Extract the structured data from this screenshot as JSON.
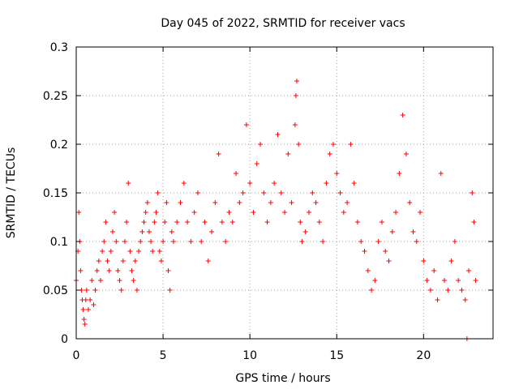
{
  "chart_data": {
    "type": "scatter",
    "title": "Day 045 of 2022, SRMTID for receiver vacs",
    "xlabel": "GPS time / hours",
    "ylabel": "SRMTID / TECUs",
    "xlim": [
      0,
      24
    ],
    "ylim": [
      0,
      0.3
    ],
    "x_ticks": [
      0,
      5,
      10,
      15,
      20
    ],
    "y_ticks": [
      0,
      0.05,
      0.1,
      0.15,
      0.2,
      0.25,
      0.3
    ],
    "x_tick_labels": [
      "0",
      "5",
      "10",
      "15",
      "20"
    ],
    "y_tick_labels": [
      "0",
      "0.05",
      "0.1",
      "0.15",
      "0.2",
      "0.25",
      "0.3"
    ],
    "grid": true,
    "marker": "plus",
    "color": "#ff0000",
    "series": [
      {
        "name": "SRMTID",
        "points": [
          [
            0.0,
            0.06
          ],
          [
            0.1,
            0.09
          ],
          [
            0.15,
            0.13
          ],
          [
            0.2,
            0.1
          ],
          [
            0.25,
            0.07
          ],
          [
            0.3,
            0.05
          ],
          [
            0.35,
            0.04
          ],
          [
            0.4,
            0.03
          ],
          [
            0.45,
            0.02
          ],
          [
            0.5,
            0.015
          ],
          [
            0.55,
            0.04
          ],
          [
            0.6,
            0.05
          ],
          [
            0.7,
            0.03
          ],
          [
            0.8,
            0.04
          ],
          [
            0.9,
            0.06
          ],
          [
            1.0,
            0.035
          ],
          [
            1.1,
            0.05
          ],
          [
            1.2,
            0.07
          ],
          [
            1.3,
            0.08
          ],
          [
            1.4,
            0.06
          ],
          [
            1.5,
            0.09
          ],
          [
            1.6,
            0.1
          ],
          [
            1.7,
            0.12
          ],
          [
            1.8,
            0.08
          ],
          [
            1.9,
            0.07
          ],
          [
            2.0,
            0.09
          ],
          [
            2.1,
            0.11
          ],
          [
            2.2,
            0.13
          ],
          [
            2.3,
            0.1
          ],
          [
            2.4,
            0.07
          ],
          [
            2.5,
            0.06
          ],
          [
            2.6,
            0.05
          ],
          [
            2.7,
            0.08
          ],
          [
            2.8,
            0.1
          ],
          [
            2.9,
            0.12
          ],
          [
            3.0,
            0.16
          ],
          [
            3.1,
            0.09
          ],
          [
            3.2,
            0.07
          ],
          [
            3.3,
            0.06
          ],
          [
            3.4,
            0.08
          ],
          [
            3.5,
            0.05
          ],
          [
            3.6,
            0.09
          ],
          [
            3.7,
            0.1
          ],
          [
            3.8,
            0.11
          ],
          [
            3.9,
            0.12
          ],
          [
            4.0,
            0.13
          ],
          [
            4.1,
            0.14
          ],
          [
            4.2,
            0.11
          ],
          [
            4.3,
            0.1
          ],
          [
            4.4,
            0.09
          ],
          [
            4.5,
            0.12
          ],
          [
            4.6,
            0.13
          ],
          [
            4.7,
            0.15
          ],
          [
            4.8,
            0.09
          ],
          [
            4.9,
            0.08
          ],
          [
            5.0,
            0.1
          ],
          [
            5.1,
            0.12
          ],
          [
            5.2,
            0.14
          ],
          [
            5.3,
            0.07
          ],
          [
            5.4,
            0.05
          ],
          [
            5.5,
            0.11
          ],
          [
            5.6,
            0.1
          ],
          [
            5.8,
            0.12
          ],
          [
            6.0,
            0.14
          ],
          [
            6.2,
            0.16
          ],
          [
            6.4,
            0.12
          ],
          [
            6.6,
            0.1
          ],
          [
            6.8,
            0.13
          ],
          [
            7.0,
            0.15
          ],
          [
            7.2,
            0.1
          ],
          [
            7.4,
            0.12
          ],
          [
            7.6,
            0.08
          ],
          [
            7.8,
            0.11
          ],
          [
            8.0,
            0.14
          ],
          [
            8.2,
            0.19
          ],
          [
            8.4,
            0.12
          ],
          [
            8.6,
            0.1
          ],
          [
            8.8,
            0.13
          ],
          [
            9.0,
            0.12
          ],
          [
            9.2,
            0.17
          ],
          [
            9.4,
            0.14
          ],
          [
            9.6,
            0.15
          ],
          [
            9.8,
            0.22
          ],
          [
            10.0,
            0.16
          ],
          [
            10.2,
            0.13
          ],
          [
            10.4,
            0.18
          ],
          [
            10.6,
            0.2
          ],
          [
            10.8,
            0.15
          ],
          [
            11.0,
            0.12
          ],
          [
            11.2,
            0.14
          ],
          [
            11.4,
            0.16
          ],
          [
            11.6,
            0.21
          ],
          [
            11.8,
            0.15
          ],
          [
            12.0,
            0.13
          ],
          [
            12.2,
            0.19
          ],
          [
            12.4,
            0.14
          ],
          [
            12.6,
            0.22
          ],
          [
            12.65,
            0.25
          ],
          [
            12.7,
            0.265
          ],
          [
            12.8,
            0.2
          ],
          [
            12.9,
            0.12
          ],
          [
            13.0,
            0.1
          ],
          [
            13.2,
            0.11
          ],
          [
            13.4,
            0.13
          ],
          [
            13.6,
            0.15
          ],
          [
            13.8,
            0.14
          ],
          [
            14.0,
            0.12
          ],
          [
            14.2,
            0.1
          ],
          [
            14.4,
            0.16
          ],
          [
            14.6,
            0.19
          ],
          [
            14.8,
            0.2
          ],
          [
            15.0,
            0.17
          ],
          [
            15.2,
            0.15
          ],
          [
            15.4,
            0.13
          ],
          [
            15.6,
            0.14
          ],
          [
            15.8,
            0.2
          ],
          [
            16.0,
            0.16
          ],
          [
            16.2,
            0.12
          ],
          [
            16.4,
            0.1
          ],
          [
            16.6,
            0.09
          ],
          [
            16.8,
            0.07
          ],
          [
            17.0,
            0.05
          ],
          [
            17.2,
            0.06
          ],
          [
            17.4,
            0.1
          ],
          [
            17.6,
            0.12
          ],
          [
            17.8,
            0.09
          ],
          [
            18.0,
            0.08
          ],
          [
            18.2,
            0.11
          ],
          [
            18.4,
            0.13
          ],
          [
            18.6,
            0.17
          ],
          [
            18.8,
            0.23
          ],
          [
            19.0,
            0.19
          ],
          [
            19.2,
            0.14
          ],
          [
            19.4,
            0.11
          ],
          [
            19.6,
            0.1
          ],
          [
            19.8,
            0.13
          ],
          [
            20.0,
            0.08
          ],
          [
            20.2,
            0.06
          ],
          [
            20.4,
            0.05
          ],
          [
            20.6,
            0.07
          ],
          [
            20.8,
            0.04
          ],
          [
            21.0,
            0.17
          ],
          [
            21.2,
            0.06
          ],
          [
            21.4,
            0.05
          ],
          [
            21.6,
            0.08
          ],
          [
            21.8,
            0.1
          ],
          [
            22.0,
            0.06
          ],
          [
            22.2,
            0.05
          ],
          [
            22.4,
            0.04
          ],
          [
            22.5,
            0.0
          ],
          [
            22.6,
            0.07
          ],
          [
            22.8,
            0.15
          ],
          [
            22.9,
            0.12
          ],
          [
            23.0,
            0.06
          ]
        ]
      }
    ]
  }
}
